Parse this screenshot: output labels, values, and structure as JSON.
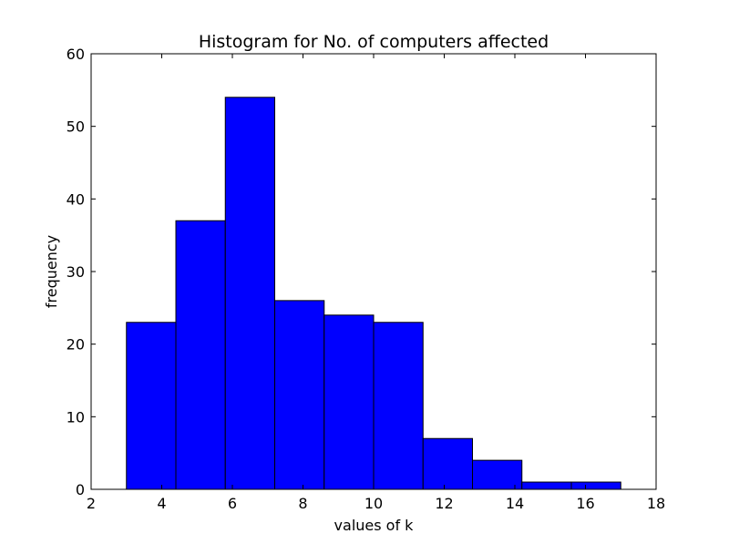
{
  "chart_data": {
    "type": "bar",
    "title": "Histogram for No. of computers affected",
    "xlabel": "values of k",
    "ylabel": "frequency",
    "xlim": [
      2,
      18
    ],
    "ylim": [
      0,
      60
    ],
    "xticks": [
      2,
      4,
      6,
      8,
      10,
      12,
      14,
      16,
      18
    ],
    "yticks": [
      0,
      10,
      20,
      30,
      40,
      50,
      60
    ],
    "bin_edges": [
      3,
      4.4,
      5.8,
      7.2,
      8.6,
      10,
      11.4,
      12.8,
      14.2,
      15.6,
      17
    ],
    "values": [
      23,
      37,
      54,
      26,
      24,
      23,
      7,
      4,
      1,
      1
    ],
    "grid": false,
    "bar_color": "#0000ff",
    "edge_color": "#000000"
  }
}
